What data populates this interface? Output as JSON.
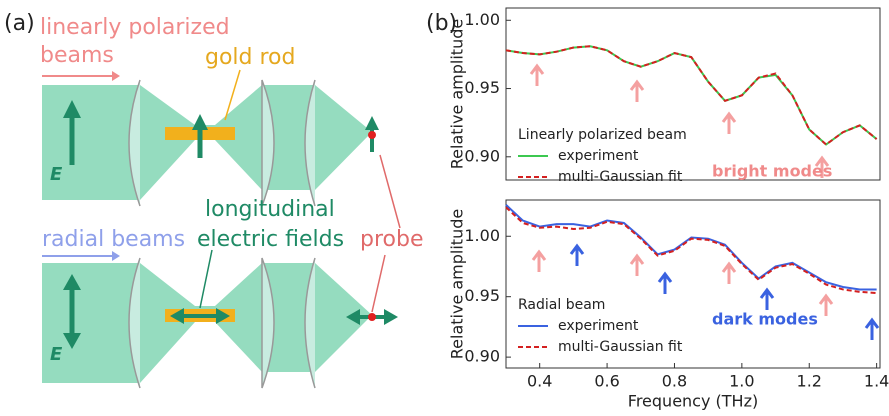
{
  "panel_a": {
    "label": "(a)",
    "beam_top": [
      "linearly polarized",
      "beams"
    ],
    "rod": "gold rod",
    "field_top": "E",
    "longitudinal": [
      "longitudinal",
      "electric fields"
    ],
    "beam_bottom": "radial beams",
    "probe": "probe",
    "field_bottom": "E"
  },
  "panel_b_label": "(b)",
  "chart_data": [
    {
      "type": "line",
      "ylabel": "Relative amplitude",
      "xlim": [
        0.3,
        1.41
      ],
      "ylim": [
        0.883,
        1.009
      ],
      "yticks": [
        {
          "value": 1,
          "label": "1.00"
        },
        0.95,
        {
          "value": 0.9,
          "label": "0.90"
        }
      ],
      "legend_title": "Linearly polarized beam",
      "annotation": "bright modes",
      "annotation_color": "#f08a8a",
      "x": [
        0.3,
        0.35,
        0.4,
        0.45,
        0.5,
        0.55,
        0.6,
        0.65,
        0.7,
        0.75,
        0.8,
        0.85,
        0.9,
        0.95,
        1.0,
        1.05,
        1.1,
        1.15,
        1.2,
        1.25,
        1.3,
        1.35,
        1.4
      ],
      "series": [
        {
          "name": "experiment",
          "color": "#3cc850",
          "linestyle": "solid",
          "values": [
            0.978,
            0.976,
            0.975,
            0.977,
            0.98,
            0.981,
            0.978,
            0.97,
            0.966,
            0.97,
            0.976,
            0.973,
            0.955,
            0.941,
            0.945,
            0.958,
            0.96,
            0.945,
            0.92,
            0.909,
            0.918,
            0.923,
            0.913
          ]
        },
        {
          "name": "multi-Gaussian fit",
          "color": "#d42020",
          "linestyle": "dashed",
          "values": [
            0.978,
            0.976,
            0.975,
            0.977,
            0.98,
            0.981,
            0.978,
            0.97,
            0.966,
            0.97,
            0.976,
            0.973,
            0.955,
            0.941,
            0.945,
            0.958,
            0.961,
            0.945,
            0.92,
            0.909,
            0.918,
            0.923,
            0.913
          ]
        }
      ]
    },
    {
      "type": "line",
      "ylabel": "Relative amplitude",
      "xlabel": "Frequency (THz)",
      "xlim": [
        0.3,
        1.41
      ],
      "ylim": [
        0.891,
        1.03
      ],
      "xticks": [
        0.4,
        0.6,
        0.8,
        {
          "value": 1,
          "label": "1.0"
        },
        1.2,
        1.4
      ],
      "yticks": [
        {
          "value": 1,
          "label": "1.00"
        },
        0.95,
        {
          "value": 0.9,
          "label": "0.90"
        }
      ],
      "legend_title": "Radial beam",
      "annotation": "dark modes",
      "annotation_color": "#3a62e0",
      "x": [
        0.3,
        0.35,
        0.4,
        0.45,
        0.5,
        0.55,
        0.6,
        0.65,
        0.7,
        0.75,
        0.8,
        0.85,
        0.9,
        0.95,
        1.0,
        1.05,
        1.1,
        1.15,
        1.2,
        1.25,
        1.3,
        1.35,
        1.4
      ],
      "series": [
        {
          "name": "experiment",
          "color": "#3a62e0",
          "linestyle": "solid",
          "values": [
            1.026,
            1.013,
            1.008,
            1.01,
            1.01,
            1.008,
            1.013,
            1.011,
            0.999,
            0.985,
            0.989,
            0.999,
            0.998,
            0.993,
            0.978,
            0.965,
            0.975,
            0.978,
            0.97,
            0.962,
            0.958,
            0.956,
            0.956
          ]
        },
        {
          "name": "multi-Gaussian fit",
          "color": "#d42020",
          "linestyle": "dashed",
          "values": [
            1.024,
            1.011,
            1.007,
            1.008,
            1.006,
            1.007,
            1.012,
            1.01,
            0.998,
            0.984,
            0.988,
            0.998,
            0.997,
            0.992,
            0.977,
            0.964,
            0.974,
            0.977,
            0.969,
            0.96,
            0.956,
            0.954,
            0.953
          ]
        }
      ]
    }
  ]
}
